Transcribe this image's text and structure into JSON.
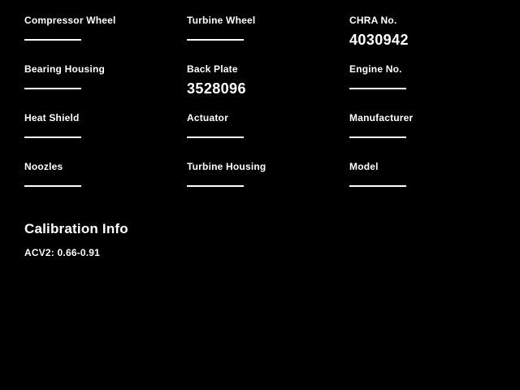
{
  "page": {
    "background_color": "#000000",
    "text_color": "#ffffff"
  },
  "fields": [
    {
      "label": "Compressor Wheel",
      "value": ""
    },
    {
      "label": "Turbine Wheel",
      "value": ""
    },
    {
      "label": "CHRA No.",
      "value": "4030942"
    },
    {
      "label": "Bearing Housing",
      "value": ""
    },
    {
      "label": "Back Plate",
      "value": "3528096"
    },
    {
      "label": "Engine No.",
      "value": ""
    },
    {
      "label": "Heat Shield",
      "value": ""
    },
    {
      "label": "Actuator",
      "value": ""
    },
    {
      "label": "Manufacturer",
      "value": ""
    },
    {
      "label": "Noozles",
      "value": ""
    },
    {
      "label": "Turbine Housing",
      "value": ""
    },
    {
      "label": "Model",
      "value": ""
    }
  ],
  "calibration": {
    "heading": "Calibration Info",
    "entries": [
      "ACV2: 0.66-0.91"
    ]
  }
}
